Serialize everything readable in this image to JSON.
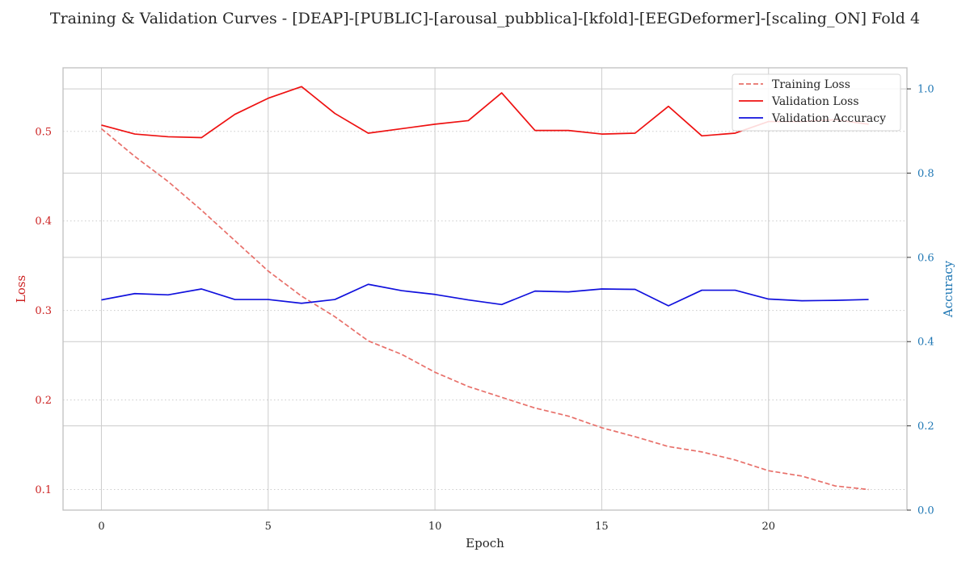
{
  "chart_data": {
    "type": "line",
    "title": "Training & Validation Curves - [DEAP]-[PUBLIC]-[arousal_pubblica]-[kfold]-[EEGDeformer]-[scaling_ON] Fold 4",
    "xlabel": "Epoch",
    "ylabel_left": "Loss",
    "ylabel_right": "Accuracy",
    "x": [
      0,
      1,
      2,
      3,
      4,
      5,
      6,
      7,
      8,
      9,
      10,
      11,
      12,
      13,
      14,
      15,
      16,
      17,
      18,
      19,
      20,
      21,
      22,
      23
    ],
    "xlim": [
      -1.15,
      24.15
    ],
    "ylim_left": [
      0.077,
      0.571
    ],
    "ylim_right": [
      0.0,
      1.05
    ],
    "xticks": [
      0,
      5,
      10,
      15,
      20
    ],
    "xtick_labels": [
      "0",
      "5",
      "10",
      "15",
      "20"
    ],
    "yticks_left": [
      0.1,
      0.2,
      0.3,
      0.4,
      0.5
    ],
    "ytick_labels_left": [
      "0.1",
      "0.2",
      "0.3",
      "0.4",
      "0.5"
    ],
    "yticks_right": [
      0.0,
      0.2,
      0.4,
      0.6,
      0.8,
      1.0
    ],
    "ytick_labels_right": [
      "0.0",
      "0.2",
      "0.4",
      "0.6",
      "0.8",
      "1.0"
    ],
    "series": [
      {
        "name": "Training Loss",
        "axis": "left",
        "color": "#e8706a",
        "dash": "dashed",
        "values": [
          0.503,
          0.472,
          0.444,
          0.412,
          0.378,
          0.344,
          0.316,
          0.293,
          0.266,
          0.251,
          0.231,
          0.215,
          0.203,
          0.191,
          0.182,
          0.169,
          0.159,
          0.148,
          0.142,
          0.133,
          0.121,
          0.115,
          0.104,
          0.1
        ]
      },
      {
        "name": "Validation Loss",
        "axis": "left",
        "color": "#ee1111",
        "dash": "solid",
        "values": [
          0.507,
          0.497,
          0.494,
          0.493,
          0.519,
          0.537,
          0.55,
          0.52,
          0.498,
          0.503,
          0.508,
          0.512,
          0.543,
          0.501,
          0.501,
          0.497,
          0.498,
          0.528,
          0.495,
          0.498,
          0.511,
          0.511,
          0.513,
          0.508
        ]
      },
      {
        "name": "Validation Accuracy",
        "axis": "right",
        "color": "#1111dd",
        "dash": "solid",
        "values": [
          0.499,
          0.514,
          0.511,
          0.525,
          0.5,
          0.5,
          0.491,
          0.5,
          0.536,
          0.521,
          0.512,
          0.499,
          0.488,
          0.52,
          0.518,
          0.525,
          0.524,
          0.485,
          0.522,
          0.522,
          0.501,
          0.497,
          0.498,
          0.5
        ]
      }
    ],
    "legend_position": "top-right",
    "grid": true,
    "colors": {
      "left_axis": "#cc2222",
      "right_axis": "#1f77b4",
      "grid": "#cccccc",
      "frame": "#bfbfbf",
      "text": "#262626"
    }
  }
}
